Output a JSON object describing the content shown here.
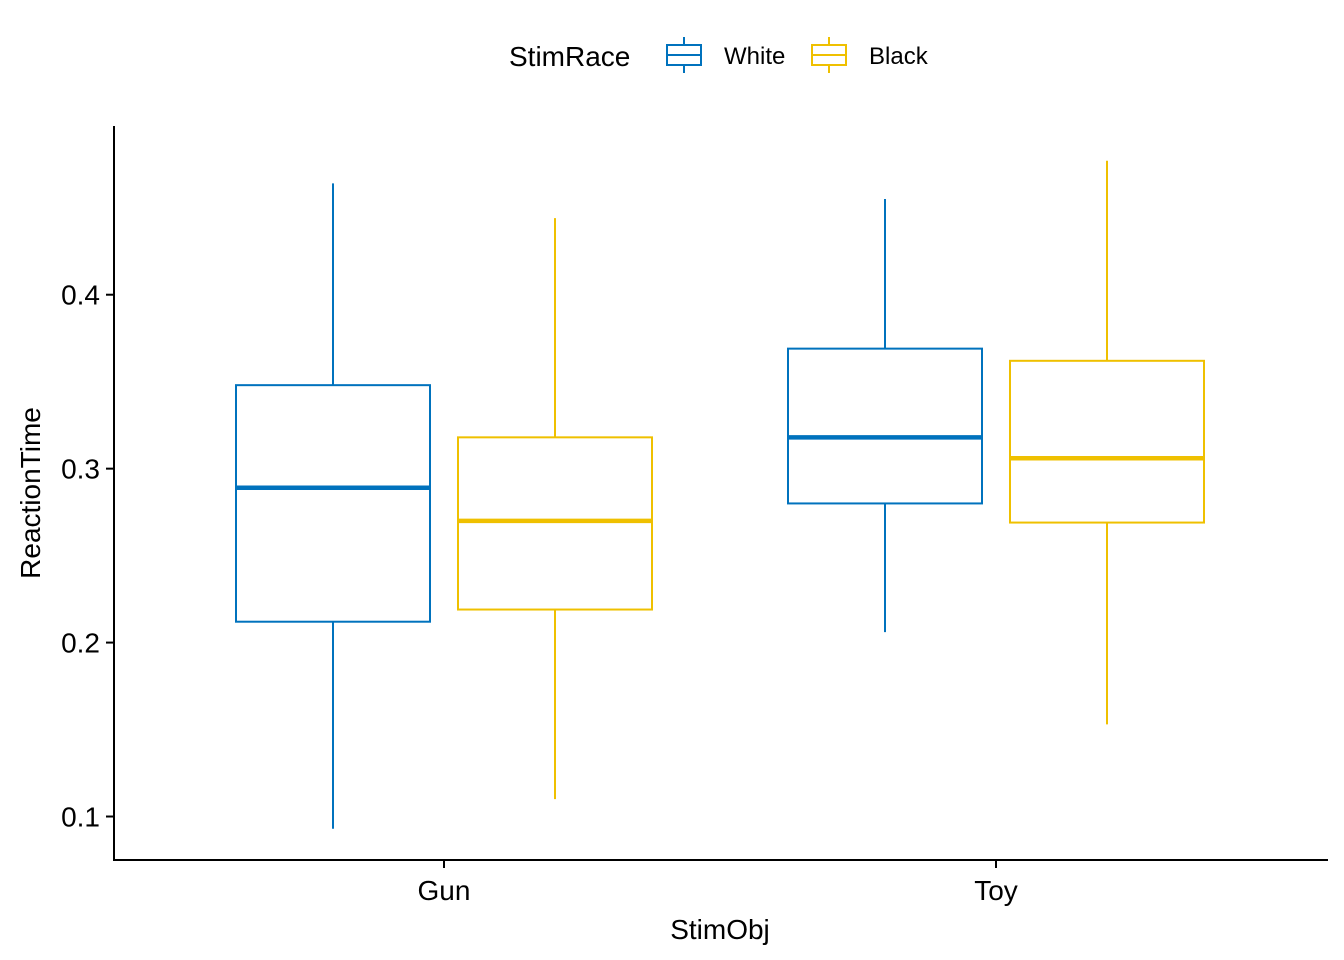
{
  "chart_data": {
    "type": "boxplot",
    "xlabel": "StimObj",
    "ylabel": "ReactionTime",
    "categories": [
      "Gun",
      "Toy"
    ],
    "y_ticks": [
      0.1,
      0.2,
      0.3,
      0.4
    ],
    "y_tick_labels": [
      "0.1",
      "0.2",
      "0.3",
      "0.4"
    ],
    "ylim": [
      0.075,
      0.497
    ],
    "grid": false,
    "legend": {
      "title": "StimRace",
      "position": "top",
      "entries": [
        "White",
        "Black"
      ]
    },
    "series": [
      {
        "name": "White",
        "color": "#0072BD",
        "boxes": [
          {
            "category": "Gun",
            "min": 0.093,
            "q1": 0.212,
            "median": 0.289,
            "q3": 0.348,
            "max": 0.464
          },
          {
            "category": "Toy",
            "min": 0.206,
            "q1": 0.28,
            "median": 0.318,
            "q3": 0.369,
            "max": 0.455
          }
        ]
      },
      {
        "name": "Black",
        "color": "#EFC000",
        "boxes": [
          {
            "category": "Gun",
            "min": 0.11,
            "q1": 0.219,
            "median": 0.27,
            "q3": 0.318,
            "max": 0.444
          },
          {
            "category": "Toy",
            "min": 0.153,
            "q1": 0.269,
            "median": 0.306,
            "q3": 0.362,
            "max": 0.477
          }
        ]
      }
    ]
  }
}
